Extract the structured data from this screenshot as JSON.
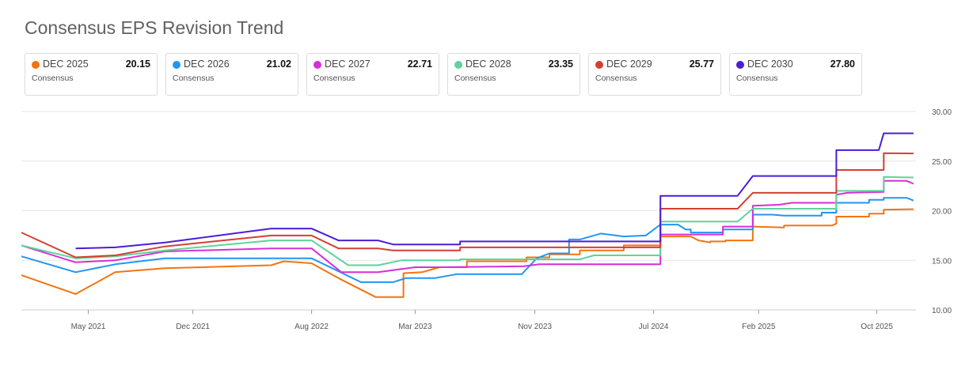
{
  "title": "Consensus EPS Revision Trend",
  "cards": [
    {
      "name": "DEC 2025",
      "value": "20.15",
      "sub": "Consensus",
      "color": "#f5730f"
    },
    {
      "name": "DEC 2026",
      "value": "21.02",
      "sub": "Consensus",
      "color": "#2196f3"
    },
    {
      "name": "DEC 2027",
      "value": "22.71",
      "sub": "Consensus",
      "color": "#d62fd6"
    },
    {
      "name": "DEC 2028",
      "value": "23.35",
      "sub": "Consensus",
      "color": "#5fd39a"
    },
    {
      "name": "DEC 2029",
      "value": "25.77",
      "sub": "Consensus",
      "color": "#d43f33"
    },
    {
      "name": "DEC 2030",
      "value": "27.80",
      "sub": "Consensus",
      "color": "#4a1dd6"
    }
  ],
  "chart_data": {
    "type": "line",
    "title": "Consensus EPS Revision Trend",
    "xlabel": "",
    "ylabel": "",
    "xlim": [
      "2020-12-15",
      "2025-12-20"
    ],
    "ylim": [
      10,
      30
    ],
    "y_ticks": [
      "10.00",
      "15.00",
      "20.00",
      "25.00",
      "30.00"
    ],
    "x_ticks": [
      {
        "label": "May 2021",
        "date": "2021-05-01"
      },
      {
        "label": "Dec 2021",
        "date": "2021-12-01"
      },
      {
        "label": "Aug 2022",
        "date": "2022-08-01"
      },
      {
        "label": "Mar 2023",
        "date": "2023-03-01"
      },
      {
        "label": "Nov 2023",
        "date": "2023-11-01"
      },
      {
        "label": "Jul 2024",
        "date": "2024-07-01"
      },
      {
        "label": "Feb 2025",
        "date": "2025-02-01"
      },
      {
        "label": "Oct 2025",
        "date": "2025-10-01"
      }
    ],
    "grid": "horizontal",
    "legend": "top",
    "series": [
      {
        "name": "DEC 2025",
        "color": "#f5730f",
        "points": [
          [
            "2020-12-15",
            13.5
          ],
          [
            "2021-04-05",
            11.6
          ],
          [
            "2021-06-25",
            13.8
          ],
          [
            "2021-10-05",
            14.2
          ],
          [
            "2022-05-10",
            14.5
          ],
          [
            "2022-06-05",
            14.9
          ],
          [
            "2022-08-01",
            14.7
          ],
          [
            "2022-09-25",
            13.2
          ],
          [
            "2022-12-10",
            11.3
          ],
          [
            "2023-02-05",
            11.3
          ],
          [
            "2023-02-05",
            13.7
          ],
          [
            "2023-03-15",
            13.8
          ],
          [
            "2023-04-20",
            14.3
          ],
          [
            "2023-06-15",
            14.3
          ],
          [
            "2023-06-15",
            14.9
          ],
          [
            "2023-10-15",
            14.9
          ],
          [
            "2023-10-15",
            15.3
          ],
          [
            "2023-12-01",
            15.3
          ],
          [
            "2023-12-01",
            15.6
          ],
          [
            "2024-02-01",
            15.6
          ],
          [
            "2024-02-01",
            16.0
          ],
          [
            "2024-05-01",
            16.0
          ],
          [
            "2024-05-01",
            16.5
          ],
          [
            "2024-07-15",
            16.5
          ],
          [
            "2024-07-15",
            17.4
          ],
          [
            "2024-09-15",
            17.4
          ],
          [
            "2024-10-01",
            17.0
          ],
          [
            "2024-10-25",
            16.8
          ],
          [
            "2024-10-25",
            16.9
          ],
          [
            "2024-11-25",
            16.9
          ],
          [
            "2024-11-25",
            17.0
          ],
          [
            "2025-01-20",
            17.0
          ],
          [
            "2025-01-20",
            18.4
          ],
          [
            "2025-03-25",
            18.3
          ],
          [
            "2025-03-25",
            18.5
          ],
          [
            "2025-07-01",
            18.5
          ],
          [
            "2025-07-10",
            18.7
          ],
          [
            "2025-07-10",
            19.4
          ],
          [
            "2025-09-15",
            19.4
          ],
          [
            "2025-09-15",
            19.7
          ],
          [
            "2025-10-15",
            19.7
          ],
          [
            "2025-10-15",
            20.1
          ],
          [
            "2025-12-15",
            20.15
          ]
        ]
      },
      {
        "name": "DEC 2026",
        "color": "#2196f3",
        "points": [
          [
            "2020-12-15",
            15.4
          ],
          [
            "2021-04-05",
            13.8
          ],
          [
            "2021-06-25",
            14.6
          ],
          [
            "2021-10-05",
            15.2
          ],
          [
            "2022-05-10",
            15.2
          ],
          [
            "2022-08-01",
            15.2
          ],
          [
            "2022-11-10",
            12.8
          ],
          [
            "2023-01-15",
            12.8
          ],
          [
            "2023-02-10",
            13.2
          ],
          [
            "2023-04-10",
            13.2
          ],
          [
            "2023-05-25",
            13.6
          ],
          [
            "2023-10-05",
            13.6
          ],
          [
            "2023-11-05",
            15.2
          ],
          [
            "2023-12-01",
            15.7
          ],
          [
            "2024-01-10",
            15.7
          ],
          [
            "2024-01-10",
            17.1
          ],
          [
            "2024-02-01",
            17.1
          ],
          [
            "2024-03-15",
            17.7
          ],
          [
            "2024-05-01",
            17.4
          ],
          [
            "2024-06-15",
            17.5
          ],
          [
            "2024-07-15",
            18.6
          ],
          [
            "2024-08-20",
            18.6
          ],
          [
            "2024-09-05",
            18.1
          ],
          [
            "2024-09-15",
            18.1
          ],
          [
            "2024-09-15",
            17.8
          ],
          [
            "2024-11-20",
            17.8
          ],
          [
            "2024-11-20",
            18.1
          ],
          [
            "2025-01-20",
            18.1
          ],
          [
            "2025-01-20",
            19.6
          ],
          [
            "2025-03-01",
            19.6
          ],
          [
            "2025-03-25",
            19.5
          ],
          [
            "2025-06-10",
            19.5
          ],
          [
            "2025-06-10",
            19.8
          ],
          [
            "2025-07-10",
            19.8
          ],
          [
            "2025-07-10",
            20.8
          ],
          [
            "2025-09-15",
            20.8
          ],
          [
            "2025-09-15",
            21.1
          ],
          [
            "2025-10-15",
            21.1
          ],
          [
            "2025-10-15",
            21.3
          ],
          [
            "2025-12-01",
            21.3
          ],
          [
            "2025-12-15",
            21.02
          ]
        ]
      },
      {
        "name": "DEC 2027",
        "color": "#d62fd6",
        "points": [
          [
            "2020-12-15",
            16.5
          ],
          [
            "2021-04-05",
            14.8
          ],
          [
            "2021-06-25",
            15.0
          ],
          [
            "2021-10-05",
            15.9
          ],
          [
            "2022-05-10",
            16.2
          ],
          [
            "2022-08-01",
            16.2
          ],
          [
            "2022-10-01",
            13.8
          ],
          [
            "2022-12-15",
            13.8
          ],
          [
            "2023-03-01",
            14.3
          ],
          [
            "2023-04-20",
            14.3
          ],
          [
            "2023-10-10",
            14.4
          ],
          [
            "2023-11-10",
            14.6
          ],
          [
            "2024-07-15",
            14.6
          ],
          [
            "2024-07-15",
            17.6
          ],
          [
            "2024-11-20",
            17.6
          ],
          [
            "2024-11-20",
            18.4
          ],
          [
            "2025-01-20",
            18.4
          ],
          [
            "2025-01-20",
            20.5
          ],
          [
            "2025-03-15",
            20.6
          ],
          [
            "2025-04-10",
            20.8
          ],
          [
            "2025-07-10",
            20.8
          ],
          [
            "2025-07-10",
            21.6
          ],
          [
            "2025-08-01",
            21.8
          ],
          [
            "2025-10-15",
            21.9
          ],
          [
            "2025-10-15",
            23.0
          ],
          [
            "2025-12-01",
            23.0
          ],
          [
            "2025-12-15",
            22.71
          ]
        ]
      },
      {
        "name": "DEC 2028",
        "color": "#5fd39a",
        "points": [
          [
            "2020-12-15",
            16.5
          ],
          [
            "2021-04-05",
            15.2
          ],
          [
            "2021-06-25",
            15.4
          ],
          [
            "2021-10-05",
            16.0
          ],
          [
            "2022-05-10",
            17.0
          ],
          [
            "2022-08-01",
            17.0
          ],
          [
            "2022-10-15",
            14.5
          ],
          [
            "2022-12-15",
            14.5
          ],
          [
            "2023-02-01",
            15.0
          ],
          [
            "2023-06-01",
            15.0
          ],
          [
            "2023-06-01",
            15.1
          ],
          [
            "2023-11-10",
            15.1
          ],
          [
            "2024-02-01",
            15.1
          ],
          [
            "2024-03-01",
            15.5
          ],
          [
            "2024-07-15",
            15.5
          ],
          [
            "2024-07-15",
            18.9
          ],
          [
            "2024-12-20",
            18.9
          ],
          [
            "2025-01-20",
            20.2
          ],
          [
            "2025-07-10",
            20.2
          ],
          [
            "2025-07-10",
            22.0
          ],
          [
            "2025-10-15",
            22.0
          ],
          [
            "2025-10-15",
            23.4
          ],
          [
            "2025-12-15",
            23.35
          ]
        ]
      },
      {
        "name": "DEC 2029",
        "color": "#d43f33",
        "points": [
          [
            "2020-12-15",
            17.8
          ],
          [
            "2021-04-05",
            15.3
          ],
          [
            "2021-06-25",
            15.5
          ],
          [
            "2021-10-05",
            16.4
          ],
          [
            "2022-05-10",
            17.5
          ],
          [
            "2022-08-01",
            17.5
          ],
          [
            "2022-09-25",
            16.2
          ],
          [
            "2022-12-15",
            16.2
          ],
          [
            "2023-01-15",
            16.0
          ],
          [
            "2023-06-01",
            16.0
          ],
          [
            "2023-06-01",
            16.3
          ],
          [
            "2024-07-15",
            16.3
          ],
          [
            "2024-07-15",
            20.2
          ],
          [
            "2024-12-20",
            20.2
          ],
          [
            "2025-01-20",
            21.8
          ],
          [
            "2025-07-10",
            21.8
          ],
          [
            "2025-07-10",
            24.1
          ],
          [
            "2025-10-15",
            24.1
          ],
          [
            "2025-10-15",
            25.8
          ],
          [
            "2025-12-15",
            25.77
          ]
        ]
      },
      {
        "name": "DEC 2030",
        "color": "#4a1dd6",
        "points": [
          [
            "2021-04-05",
            16.2
          ],
          [
            "2021-06-25",
            16.3
          ],
          [
            "2021-10-05",
            16.8
          ],
          [
            "2022-05-10",
            18.2
          ],
          [
            "2022-08-01",
            18.2
          ],
          [
            "2022-09-25",
            17.0
          ],
          [
            "2022-12-15",
            17.0
          ],
          [
            "2023-01-15",
            16.6
          ],
          [
            "2023-06-01",
            16.6
          ],
          [
            "2023-06-01",
            16.9
          ],
          [
            "2024-07-15",
            16.9
          ],
          [
            "2024-07-15",
            21.5
          ],
          [
            "2024-12-20",
            21.5
          ],
          [
            "2025-01-20",
            23.5
          ],
          [
            "2025-07-10",
            23.5
          ],
          [
            "2025-07-10",
            26.1
          ],
          [
            "2025-10-05",
            26.1
          ],
          [
            "2025-10-15",
            27.8
          ],
          [
            "2025-12-15",
            27.8
          ]
        ]
      }
    ]
  }
}
